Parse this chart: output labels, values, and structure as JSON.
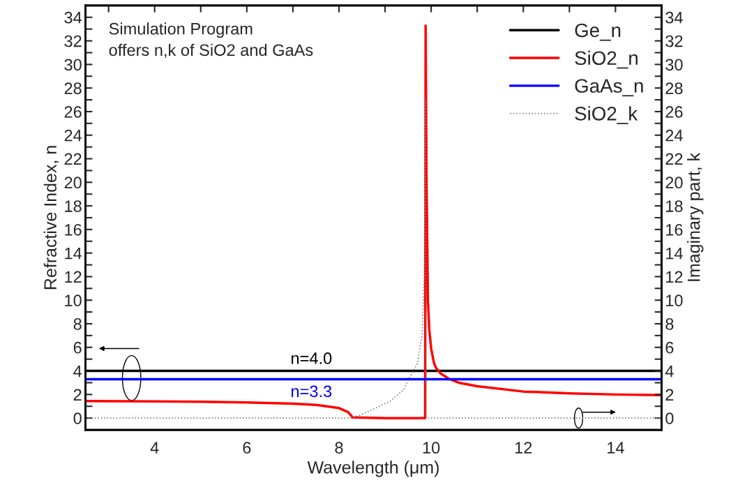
{
  "chart_data": {
    "type": "line",
    "xlabel": "Wavelength (μm)",
    "ylabel": "Refractive Index, n",
    "y2label": "Imaginary part, k",
    "xlim": [
      2.5,
      15
    ],
    "xticks": [
      {
        "value": 3,
        "label": null
      },
      4,
      {
        "value": 5,
        "label": null
      },
      6,
      {
        "value": 7,
        "label": null
      },
      8,
      {
        "value": 9,
        "label": null
      },
      10,
      {
        "value": 11,
        "label": null
      },
      12,
      {
        "value": 13,
        "label": null
      },
      14
    ],
    "ylim": [
      -1,
      35
    ],
    "yticks": [
      0,
      {
        "value": 1,
        "label": null
      },
      2,
      {
        "value": 3,
        "label": null
      },
      4,
      {
        "value": 5,
        "label": null
      },
      6,
      {
        "value": 7,
        "label": null
      },
      8,
      {
        "value": 9,
        "label": null
      },
      10,
      {
        "value": 11,
        "label": null
      },
      12,
      {
        "value": 13,
        "label": null
      },
      14,
      {
        "value": 15,
        "label": null
      },
      16,
      {
        "value": 17,
        "label": null
      },
      18,
      {
        "value": 19,
        "label": null
      },
      20,
      {
        "value": 21,
        "label": null
      },
      22,
      {
        "value": 23,
        "label": null
      },
      24,
      {
        "value": 25,
        "label": null
      },
      26,
      {
        "value": 27,
        "label": null
      },
      28,
      {
        "value": 29,
        "label": null
      },
      30,
      {
        "value": 31,
        "label": null
      },
      32,
      {
        "value": 33,
        "label": null
      },
      34
    ],
    "y2lim": [
      -1,
      35
    ],
    "y2ticks": [
      0,
      {
        "value": 1,
        "label": null
      },
      2,
      {
        "value": 3,
        "label": null
      },
      4,
      {
        "value": 5,
        "label": null
      },
      6,
      {
        "value": 7,
        "label": null
      },
      8,
      {
        "value": 9,
        "label": null
      },
      10,
      {
        "value": 11,
        "label": null
      },
      12,
      {
        "value": 13,
        "label": null
      },
      14,
      {
        "value": 15,
        "label": null
      },
      16,
      {
        "value": 17,
        "label": null
      },
      18,
      {
        "value": 19,
        "label": null
      },
      20,
      {
        "value": 21,
        "label": null
      },
      22,
      {
        "value": 23,
        "label": null
      },
      24,
      {
        "value": 25,
        "label": null
      },
      26,
      {
        "value": 27,
        "label": null
      },
      28,
      {
        "value": 29,
        "label": null
      },
      30,
      {
        "value": 31,
        "label": null
      },
      32,
      {
        "value": 33,
        "label": null
      },
      34
    ],
    "grid": false,
    "legend": "top right",
    "series": [
      {
        "name": "Ge_n",
        "color": "#000000",
        "line_style": "solid",
        "x": [
          2.5,
          15
        ],
        "values": [
          4.0,
          4.0
        ]
      },
      {
        "name": "SiO2_n",
        "color": "#ff0000",
        "line_style": "solid",
        "x": [
          2.5,
          4,
          5,
          6,
          7,
          7.5,
          8,
          8.2,
          8.3,
          9.0,
          9.87,
          9.88,
          9.9,
          9.93,
          9.96,
          10.0,
          10.06,
          10.1,
          10.2,
          10.4,
          10.6,
          11,
          12,
          13,
          14,
          15
        ],
        "values": [
          1.45,
          1.42,
          1.38,
          1.33,
          1.22,
          1.12,
          0.85,
          0.5,
          0.05,
          0,
          0,
          33.3,
          20,
          10,
          7.5,
          5.9,
          4.7,
          4.3,
          3.8,
          3.3,
          3.0,
          2.7,
          2.25,
          2.1,
          2.0,
          1.95
        ]
      },
      {
        "name": "GaAs_n",
        "color": "#0000ff",
        "line_style": "solid",
        "x": [
          2.5,
          15
        ],
        "values": [
          3.3,
          3.3
        ]
      },
      {
        "name": "SiO2_k",
        "color": "#808080",
        "line_style": "dotted",
        "axis": "y2",
        "x": [
          2.5,
          8.3,
          8.6,
          9.1,
          9.4,
          9.58,
          9.7,
          9.8,
          9.85,
          9.88,
          9.89,
          15
        ],
        "values": [
          0,
          0,
          0.5,
          1.4,
          2.4,
          3.8,
          4.6,
          7,
          12,
          27,
          0,
          0
        ]
      }
    ],
    "annotations": [
      {
        "text": "Simulation Program\noffers n,k of SiO2 and GaAs"
      },
      {
        "text": "n=4.0",
        "x": 7.4,
        "y": 4.0
      },
      {
        "text": "n=3.3",
        "x": 7.4,
        "y": 3.3
      }
    ]
  }
}
